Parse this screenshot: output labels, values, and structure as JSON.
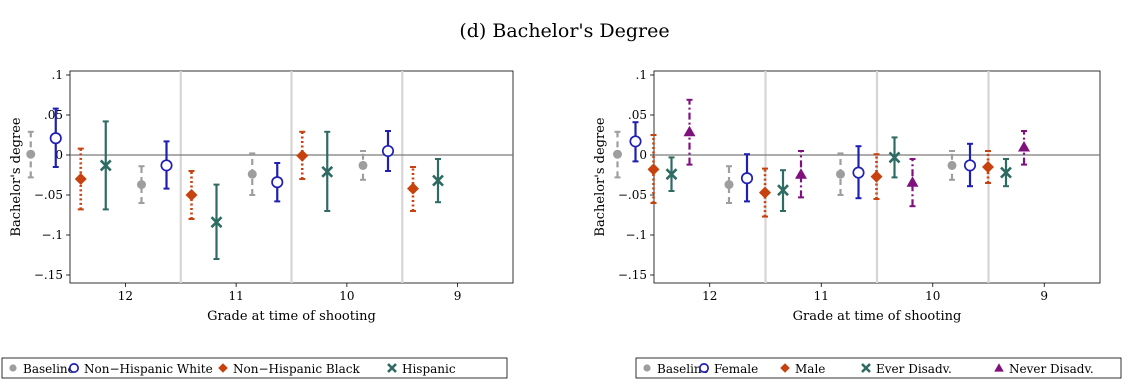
{
  "title": "(d) Bachelor's Degree",
  "colors": {
    "baseline": "#9e9e9e",
    "white": "#1f1fb4",
    "black": "#c8420f",
    "hispanic": "#2e6b62",
    "female": "#1f1fb4",
    "male": "#c8420f",
    "ever": "#2e6b62",
    "never": "#7f117f"
  },
  "chart_data": [
    {
      "type": "scatter",
      "subtype": "coefficient plot with confidence intervals",
      "title": "",
      "xlabel": "Grade at time of shooting",
      "ylabel": "Bachelor's degree",
      "ylim": [
        -0.16,
        0.105
      ],
      "yticks": [
        0.1,
        0.05,
        0,
        -0.05,
        -0.1,
        -0.15
      ],
      "ytick_labels": [
        ".1",
        ".05",
        "0",
        "−.05",
        "−.1",
        "−.15"
      ],
      "categories": [
        "12",
        "11",
        "10",
        "9"
      ],
      "legend_position": "bottom",
      "series": [
        {
          "name": "Baseline",
          "color_key": "baseline",
          "marker": "filled-circle",
          "line": "dashed",
          "values": [
            0.001,
            -0.037,
            -0.024,
            -0.013
          ],
          "ci_low": [
            -0.028,
            -0.06,
            -0.05,
            -0.031
          ],
          "ci_high": [
            0.029,
            -0.014,
            0.002,
            0.005
          ]
        },
        {
          "name": "Non−Hispanic White",
          "color_key": "white",
          "marker": "hollow-circle",
          "line": "solid",
          "values": [
            0.021,
            -0.013,
            -0.034,
            0.005
          ],
          "ci_low": [
            -0.015,
            -0.042,
            -0.058,
            -0.02
          ],
          "ci_high": [
            0.058,
            0.017,
            -0.01,
            0.03
          ]
        },
        {
          "name": "Non−Hispanic Black",
          "color_key": "black",
          "marker": "diamond",
          "line": "dotted",
          "values": [
            -0.03,
            -0.05,
            -0.001,
            -0.042
          ],
          "ci_low": [
            -0.068,
            -0.08,
            -0.03,
            -0.07
          ],
          "ci_high": [
            0.008,
            -0.02,
            0.029,
            -0.015
          ]
        },
        {
          "name": "Hispanic",
          "color_key": "hispanic",
          "marker": "x",
          "line": "solid",
          "values": [
            -0.013,
            -0.084,
            -0.021,
            -0.032
          ],
          "ci_low": [
            -0.068,
            -0.13,
            -0.07,
            -0.059
          ],
          "ci_high": [
            0.042,
            -0.037,
            0.029,
            -0.005
          ]
        }
      ]
    },
    {
      "type": "scatter",
      "subtype": "coefficient plot with confidence intervals",
      "title": "",
      "xlabel": "Grade at time of shooting",
      "ylabel": "Bachelor's degree",
      "ylim": [
        -0.16,
        0.105
      ],
      "yticks": [
        0.1,
        0.05,
        0,
        -0.05,
        -0.1,
        -0.15
      ],
      "ytick_labels": [
        ".1",
        ".05",
        "0",
        "−.05",
        "−.1",
        "−.15"
      ],
      "categories": [
        "12",
        "11",
        "10",
        "9"
      ],
      "legend_position": "bottom",
      "series": [
        {
          "name": "Baseline",
          "color_key": "baseline",
          "marker": "filled-circle",
          "line": "dashed",
          "values": [
            0.001,
            -0.037,
            -0.024,
            -0.013
          ],
          "ci_low": [
            -0.028,
            -0.06,
            -0.05,
            -0.031
          ],
          "ci_high": [
            0.029,
            -0.014,
            0.002,
            0.005
          ]
        },
        {
          "name": "Female",
          "color_key": "female",
          "marker": "hollow-circle",
          "line": "solid",
          "values": [
            0.017,
            -0.029,
            -0.022,
            -0.013
          ],
          "ci_low": [
            -0.008,
            -0.058,
            -0.054,
            -0.039
          ],
          "ci_high": [
            0.041,
            0.001,
            0.011,
            0.014
          ]
        },
        {
          "name": "Male",
          "color_key": "male",
          "marker": "diamond",
          "line": "dotted",
          "values": [
            -0.018,
            -0.047,
            -0.027,
            -0.015
          ],
          "ci_low": [
            -0.06,
            -0.077,
            -0.055,
            -0.035
          ],
          "ci_high": [
            0.025,
            -0.017,
            0.001,
            0.005
          ]
        },
        {
          "name": "Ever Disadv.",
          "color_key": "ever",
          "marker": "x",
          "line": "solid",
          "values": [
            -0.024,
            -0.044,
            -0.003,
            -0.022
          ],
          "ci_low": [
            -0.045,
            -0.07,
            -0.028,
            -0.039
          ],
          "ci_high": [
            -0.003,
            -0.019,
            0.022,
            -0.005
          ]
        },
        {
          "name": "Never Disadv.",
          "color_key": "never",
          "marker": "triangle",
          "line": "dashdot",
          "values": [
            0.029,
            -0.024,
            -0.034,
            0.01
          ],
          "ci_low": [
            -0.012,
            -0.053,
            -0.064,
            -0.012
          ],
          "ci_high": [
            0.069,
            0.005,
            -0.005,
            0.03
          ]
        }
      ]
    }
  ]
}
